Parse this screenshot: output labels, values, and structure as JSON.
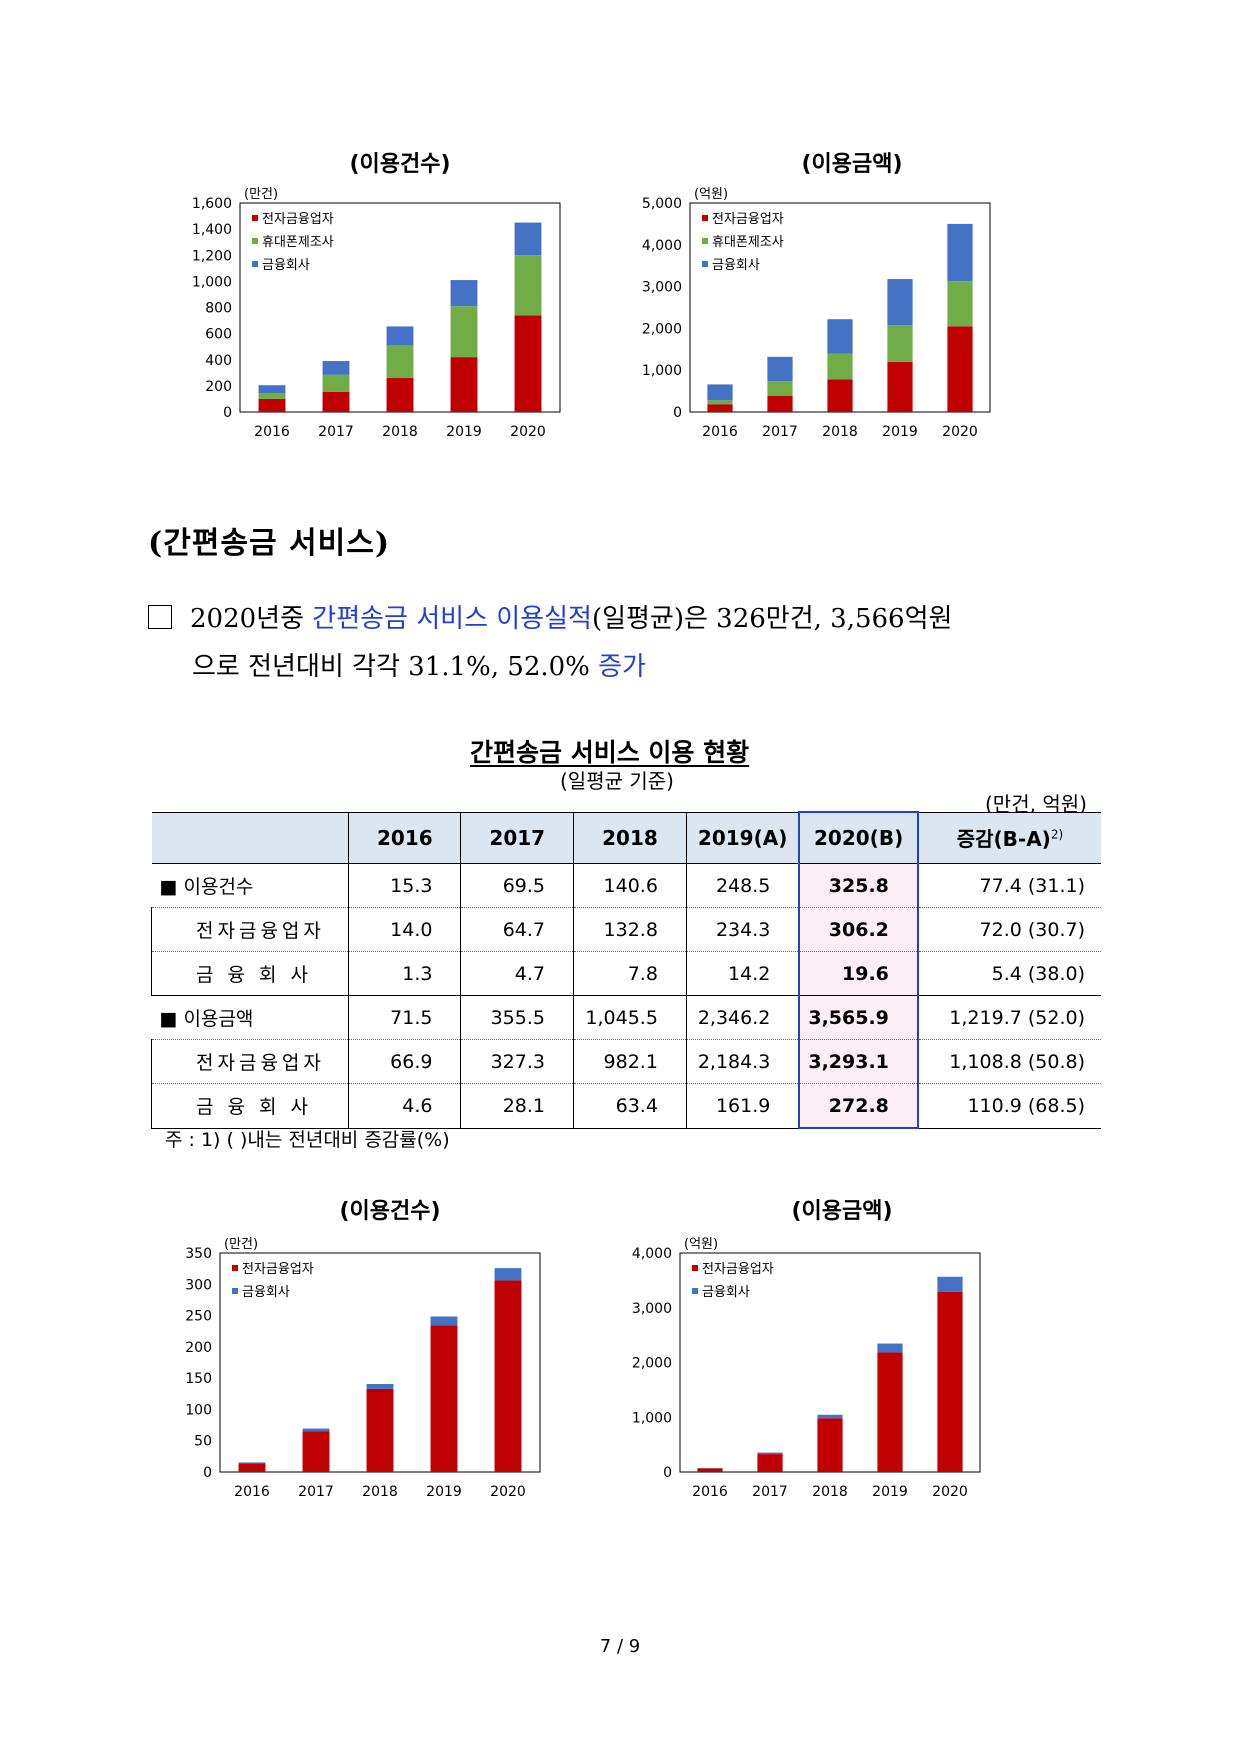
{
  "charts": {
    "top_count": {
      "title": "(이용건수)",
      "unit": "(만건)",
      "yticks": [
        "0",
        "200",
        "400",
        "600",
        "800",
        "1,000",
        "1,200",
        "1,400",
        "1,600"
      ]
    },
    "top_amount": {
      "title": "(이용금액)",
      "unit": "(억원)",
      "yticks": [
        "0",
        "1,000",
        "2,000",
        "3,000",
        "4,000",
        "5,000"
      ]
    },
    "bottom_count": {
      "title": "(이용건수)",
      "unit": "(만건)",
      "yticks": [
        "0",
        "50",
        "100",
        "150",
        "200",
        "250",
        "300",
        "350"
      ]
    },
    "bottom_amount": {
      "title": "(이용금액)",
      "unit": "(억원)",
      "yticks": [
        "0",
        "1,000",
        "2,000",
        "3,000",
        "4,000"
      ]
    }
  },
  "colors": {
    "electronic": "#c00000",
    "phone": "#70ad47",
    "financial": "#4472c4",
    "highlight_border": "#1f3fd6",
    "highlight_fill": "#fbeef4",
    "header_fill": "#dce6f1"
  },
  "chart_data": [
    {
      "type": "bar",
      "stacked": true,
      "categories": [
        "2016",
        "2017",
        "2018",
        "2019",
        "2020"
      ],
      "ylim": [
        0,
        1600
      ],
      "series": [
        {
          "name": "전자금융업자",
          "values": [
            100,
            155,
            260,
            420,
            740
          ]
        },
        {
          "name": "휴대폰제조사",
          "values": [
            45,
            130,
            250,
            390,
            460
          ]
        },
        {
          "name": "금융회사",
          "values": [
            60,
            105,
            145,
            200,
            250
          ]
        }
      ]
    },
    {
      "type": "bar",
      "stacked": true,
      "categories": [
        "2016",
        "2017",
        "2018",
        "2019",
        "2020"
      ],
      "ylim": [
        0,
        5000
      ],
      "series": [
        {
          "name": "전자금융업자",
          "values": [
            180,
            390,
            780,
            1200,
            2050
          ]
        },
        {
          "name": "휴대폰제조사",
          "values": [
            100,
            350,
            620,
            880,
            1080
          ]
        },
        {
          "name": "금융회사",
          "values": [
            380,
            580,
            820,
            1100,
            1370
          ]
        }
      ]
    },
    {
      "type": "bar",
      "stacked": true,
      "categories": [
        "2016",
        "2017",
        "2018",
        "2019",
        "2020"
      ],
      "ylim": [
        0,
        350
      ],
      "series": [
        {
          "name": "전자금융업자",
          "values": [
            14.0,
            64.7,
            132.8,
            234.3,
            306.2
          ]
        },
        {
          "name": "금융회사",
          "values": [
            1.3,
            4.7,
            7.8,
            14.2,
            19.6
          ]
        }
      ]
    },
    {
      "type": "bar",
      "stacked": true,
      "categories": [
        "2016",
        "2017",
        "2018",
        "2019",
        "2020"
      ],
      "ylim": [
        0,
        4000
      ],
      "series": [
        {
          "name": "전자금융업자",
          "values": [
            66.9,
            327.3,
            982.1,
            2184.3,
            3293.1
          ]
        },
        {
          "name": "금융회사",
          "values": [
            4.6,
            28.1,
            63.4,
            161.9,
            272.8
          ]
        }
      ]
    }
  ],
  "section_heading": "(간편송금 서비스)",
  "summary": {
    "prefix": "2020년중 ",
    "highlight1": "간편송금 서비스 이용실적",
    "middle": "(일평균)은 326만건, 3,566억원",
    "line2_text": "으로 전년대비 각각 31.1%, 52.0% ",
    "highlight2": "증가"
  },
  "table": {
    "title": "간편송금 서비스 이용 현황",
    "subtitle": "(일평균 기준)",
    "unit": "(만건, 억원)",
    "headers": [
      "",
      "2016",
      "2017",
      "2018",
      "2019(A)",
      "2020(B)",
      "증감(B-A)"
    ],
    "change_note_mark": "2)",
    "rows": [
      {
        "label": "■ 이용건수",
        "values": [
          "15.3",
          "69.5",
          "140.6",
          "248.5",
          "325.8"
        ],
        "change": "77.4  (31.1)"
      },
      {
        "label": "전자금융업자",
        "values": [
          "14.0",
          "64.7",
          "132.8",
          "234.3",
          "306.2"
        ],
        "change": "72.0  (30.7)"
      },
      {
        "label": "금 융 회 사",
        "values": [
          "1.3",
          "4.7",
          "7.8",
          "14.2",
          "19.6"
        ],
        "change": "5.4  (38.0)"
      },
      {
        "label": "■ 이용금액",
        "values": [
          "71.5",
          "355.5",
          "1,045.5",
          "2,346.2",
          "3,565.9"
        ],
        "change": "1,219.7  (52.0)"
      },
      {
        "label": "전자금융업자",
        "values": [
          "66.9",
          "327.3",
          "982.1",
          "2,184.3",
          "3,293.1"
        ],
        "change": "1,108.8  (50.8)"
      },
      {
        "label": "금 융 회 사",
        "values": [
          "4.6",
          "28.1",
          "63.4",
          "161.9",
          "272.8"
        ],
        "change": "110.9  (68.5)"
      }
    ],
    "note": "주 : 1) (    )내는 전년대비 증감률(%)"
  },
  "page_number": "7 / 9"
}
